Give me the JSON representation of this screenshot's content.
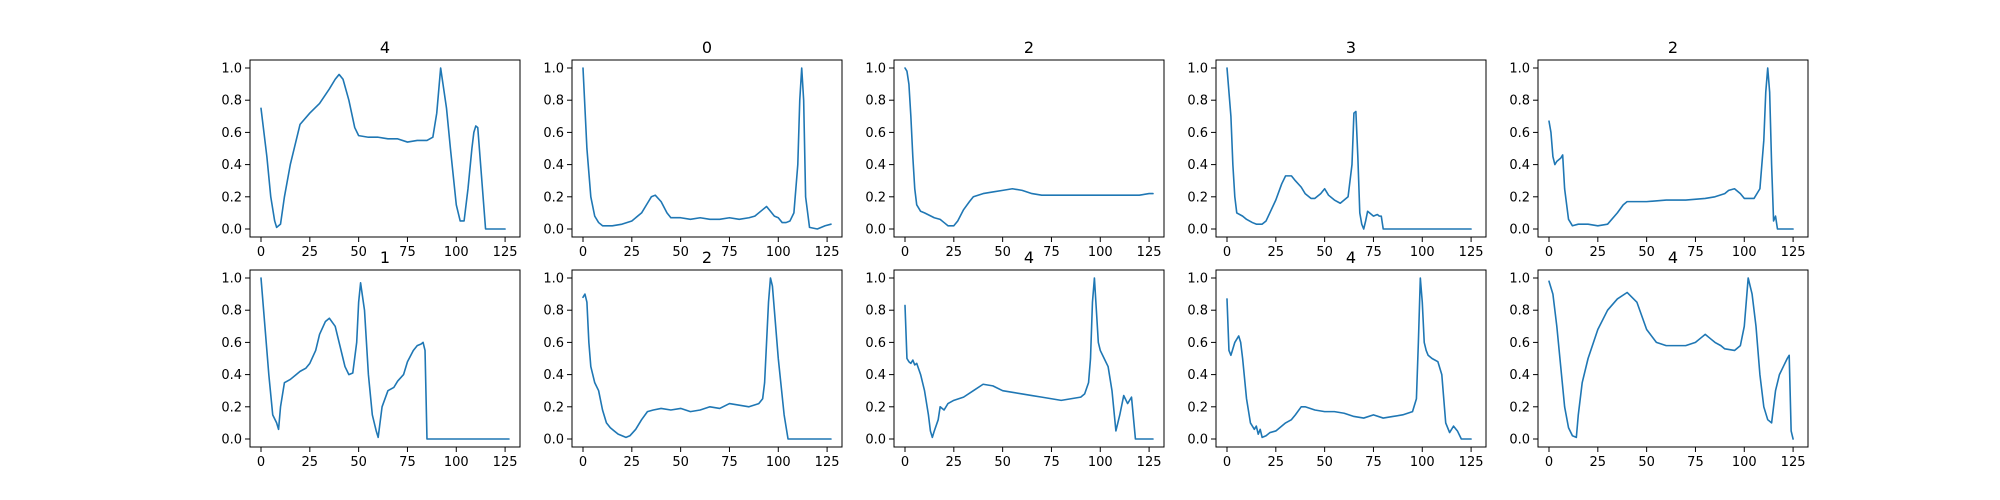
{
  "figure": {
    "line_color": "#1f77b4"
  },
  "chart_data": [
    {
      "type": "line",
      "title": "4",
      "xlim": [
        0,
        127
      ],
      "ylim": [
        0,
        1
      ],
      "xticks": [
        0,
        25,
        50,
        75,
        100,
        125
      ],
      "yticks": [
        0.0,
        0.2,
        0.4,
        0.6,
        0.8,
        1.0
      ],
      "x": [
        0,
        3,
        5,
        7,
        8,
        10,
        12,
        15,
        18,
        20,
        25,
        30,
        35,
        38,
        40,
        42,
        45,
        48,
        50,
        55,
        60,
        65,
        70,
        75,
        80,
        85,
        88,
        90,
        92,
        95,
        97,
        100,
        102,
        104,
        106,
        108,
        109,
        110,
        111,
        115,
        120,
        125
      ],
      "series": [
        {
          "values": [
            0.75,
            0.45,
            0.2,
            0.05,
            0.01,
            0.03,
            0.2,
            0.4,
            0.55,
            0.65,
            0.72,
            0.78,
            0.87,
            0.93,
            0.96,
            0.93,
            0.8,
            0.63,
            0.58,
            0.57,
            0.57,
            0.56,
            0.56,
            0.54,
            0.55,
            0.55,
            0.57,
            0.72,
            1.0,
            0.75,
            0.5,
            0.15,
            0.05,
            0.05,
            0.25,
            0.5,
            0.6,
            0.64,
            0.63,
            0.0,
            0.0,
            0.0
          ]
        }
      ]
    },
    {
      "type": "line",
      "title": "0",
      "xlim": [
        0,
        127
      ],
      "ylim": [
        0,
        1
      ],
      "xticks": [
        0,
        25,
        50,
        75,
        100,
        125
      ],
      "yticks": [
        0.0,
        0.2,
        0.4,
        0.6,
        0.8,
        1.0
      ],
      "x": [
        0,
        2,
        4,
        6,
        8,
        10,
        15,
        20,
        25,
        30,
        33,
        35,
        37,
        40,
        43,
        45,
        50,
        55,
        60,
        65,
        70,
        75,
        80,
        85,
        88,
        92,
        94,
        96,
        98,
        100,
        102,
        104,
        106,
        108,
        110,
        111,
        112,
        113,
        114,
        116,
        120,
        124,
        127
      ],
      "series": [
        {
          "values": [
            1.0,
            0.5,
            0.2,
            0.08,
            0.04,
            0.02,
            0.02,
            0.03,
            0.05,
            0.1,
            0.16,
            0.2,
            0.21,
            0.17,
            0.1,
            0.07,
            0.07,
            0.06,
            0.07,
            0.06,
            0.06,
            0.07,
            0.06,
            0.07,
            0.08,
            0.12,
            0.14,
            0.11,
            0.08,
            0.07,
            0.04,
            0.04,
            0.05,
            0.1,
            0.4,
            0.8,
            1.0,
            0.8,
            0.2,
            0.01,
            0.0,
            0.02,
            0.03
          ]
        }
      ]
    },
    {
      "type": "line",
      "title": "2",
      "xlim": [
        0,
        127
      ],
      "ylim": [
        0,
        1
      ],
      "xticks": [
        0,
        25,
        50,
        75,
        100,
        125
      ],
      "yticks": [
        0.0,
        0.2,
        0.4,
        0.6,
        0.8,
        1.0
      ],
      "x": [
        0,
        1,
        2,
        3,
        4,
        5,
        6,
        8,
        10,
        15,
        18,
        20,
        22,
        25,
        27,
        30,
        33,
        35,
        40,
        45,
        50,
        55,
        60,
        65,
        70,
        75,
        80,
        90,
        100,
        110,
        120,
        125,
        127
      ],
      "series": [
        {
          "values": [
            1.0,
            0.98,
            0.9,
            0.7,
            0.45,
            0.25,
            0.15,
            0.11,
            0.1,
            0.07,
            0.06,
            0.04,
            0.02,
            0.02,
            0.05,
            0.12,
            0.17,
            0.2,
            0.22,
            0.23,
            0.24,
            0.25,
            0.24,
            0.22,
            0.21,
            0.21,
            0.21,
            0.21,
            0.21,
            0.21,
            0.21,
            0.22,
            0.22
          ]
        }
      ]
    },
    {
      "type": "line",
      "title": "3",
      "xlim": [
        0,
        127
      ],
      "ylim": [
        0,
        1
      ],
      "xticks": [
        0,
        25,
        50,
        75,
        100,
        125
      ],
      "yticks": [
        0.0,
        0.2,
        0.4,
        0.6,
        0.8,
        1.0
      ],
      "x": [
        0,
        2,
        3,
        4,
        5,
        8,
        10,
        13,
        15,
        18,
        20,
        25,
        28,
        30,
        33,
        35,
        38,
        40,
        43,
        45,
        48,
        50,
        52,
        55,
        58,
        62,
        64,
        65,
        66,
        67,
        68,
        69,
        70,
        71,
        72,
        75,
        77,
        78,
        79,
        80,
        85,
        100,
        125
      ],
      "series": [
        {
          "values": [
            1.0,
            0.7,
            0.4,
            0.2,
            0.1,
            0.08,
            0.06,
            0.04,
            0.03,
            0.03,
            0.05,
            0.18,
            0.28,
            0.33,
            0.33,
            0.3,
            0.26,
            0.22,
            0.19,
            0.19,
            0.22,
            0.25,
            0.21,
            0.18,
            0.16,
            0.2,
            0.4,
            0.72,
            0.73,
            0.45,
            0.1,
            0.03,
            0.0,
            0.05,
            0.11,
            0.08,
            0.09,
            0.08,
            0.08,
            0.0,
            0.0,
            0.0,
            0.0
          ]
        }
      ]
    },
    {
      "type": "line",
      "title": "2",
      "xlim": [
        0,
        127
      ],
      "ylim": [
        0,
        1
      ],
      "xticks": [
        0,
        25,
        50,
        75,
        100,
        125
      ],
      "yticks": [
        0.0,
        0.2,
        0.4,
        0.6,
        0.8,
        1.0
      ],
      "x": [
        0,
        1,
        2,
        3,
        4,
        5,
        6,
        7,
        8,
        10,
        12,
        15,
        20,
        25,
        30,
        35,
        38,
        40,
        50,
        60,
        70,
        80,
        85,
        90,
        92,
        95,
        98,
        100,
        105,
        108,
        110,
        111,
        112,
        113,
        114,
        115,
        116,
        117,
        118,
        120,
        125
      ],
      "series": [
        {
          "values": [
            0.67,
            0.6,
            0.45,
            0.4,
            0.42,
            0.43,
            0.44,
            0.46,
            0.25,
            0.06,
            0.02,
            0.03,
            0.03,
            0.02,
            0.03,
            0.1,
            0.15,
            0.17,
            0.17,
            0.18,
            0.18,
            0.19,
            0.2,
            0.22,
            0.24,
            0.25,
            0.22,
            0.19,
            0.19,
            0.25,
            0.55,
            0.85,
            1.0,
            0.85,
            0.4,
            0.05,
            0.08,
            0.0,
            0.0,
            0.0,
            0.0
          ]
        }
      ]
    },
    {
      "type": "line",
      "title": "1",
      "xlim": [
        0,
        127
      ],
      "ylim": [
        0,
        1
      ],
      "xticks": [
        0,
        25,
        50,
        75,
        100,
        125
      ],
      "yticks": [
        0.0,
        0.2,
        0.4,
        0.6,
        0.8,
        1.0
      ],
      "x": [
        0,
        2,
        4,
        6,
        8,
        9,
        10,
        12,
        15,
        18,
        20,
        23,
        25,
        28,
        30,
        33,
        35,
        38,
        40,
        42,
        43,
        45,
        47,
        49,
        50,
        51,
        53,
        55,
        57,
        59,
        60,
        62,
        65,
        68,
        70,
        73,
        75,
        78,
        80,
        82,
        83,
        84,
        85,
        90,
        100,
        127
      ],
      "series": [
        {
          "values": [
            1.0,
            0.7,
            0.4,
            0.15,
            0.1,
            0.06,
            0.2,
            0.35,
            0.37,
            0.4,
            0.42,
            0.44,
            0.47,
            0.55,
            0.65,
            0.73,
            0.75,
            0.7,
            0.6,
            0.5,
            0.45,
            0.4,
            0.41,
            0.6,
            0.85,
            0.97,
            0.8,
            0.4,
            0.15,
            0.05,
            0.01,
            0.2,
            0.3,
            0.32,
            0.36,
            0.4,
            0.48,
            0.55,
            0.58,
            0.59,
            0.6,
            0.55,
            0.0,
            0.0,
            0.0,
            0.0
          ]
        }
      ]
    },
    {
      "type": "line",
      "title": "2",
      "xlim": [
        0,
        127
      ],
      "ylim": [
        0,
        1
      ],
      "xticks": [
        0,
        25,
        50,
        75,
        100,
        125
      ],
      "yticks": [
        0.0,
        0.2,
        0.4,
        0.6,
        0.8,
        1.0
      ],
      "x": [
        0,
        1,
        2,
        3,
        4,
        5,
        6,
        8,
        10,
        12,
        14,
        16,
        18,
        20,
        22,
        24,
        27,
        30,
        33,
        36,
        40,
        45,
        50,
        55,
        60,
        65,
        70,
        75,
        80,
        85,
        90,
        92,
        93,
        94,
        95,
        96,
        97,
        98,
        100,
        103,
        105,
        110,
        120,
        127
      ],
      "series": [
        {
          "values": [
            0.88,
            0.9,
            0.85,
            0.6,
            0.45,
            0.4,
            0.35,
            0.3,
            0.18,
            0.1,
            0.07,
            0.05,
            0.03,
            0.02,
            0.01,
            0.02,
            0.06,
            0.12,
            0.17,
            0.18,
            0.19,
            0.18,
            0.19,
            0.17,
            0.18,
            0.2,
            0.19,
            0.22,
            0.21,
            0.2,
            0.22,
            0.25,
            0.35,
            0.6,
            0.85,
            1.0,
            0.95,
            0.8,
            0.5,
            0.15,
            0.0,
            0.0,
            0.0,
            0.0
          ]
        }
      ]
    },
    {
      "type": "line",
      "title": "4",
      "xlim": [
        0,
        127
      ],
      "ylim": [
        0,
        1
      ],
      "xticks": [
        0,
        25,
        50,
        75,
        100,
        125
      ],
      "yticks": [
        0.0,
        0.2,
        0.4,
        0.6,
        0.8,
        1.0
      ],
      "x": [
        0,
        1,
        2,
        3,
        4,
        5,
        6,
        8,
        10,
        12,
        13,
        14,
        15,
        17,
        18,
        20,
        22,
        25,
        30,
        35,
        40,
        45,
        50,
        55,
        60,
        65,
        70,
        75,
        80,
        85,
        90,
        92,
        94,
        95,
        96,
        97,
        98,
        99,
        100,
        102,
        104,
        106,
        108,
        110,
        112,
        114,
        116,
        118,
        120,
        127
      ],
      "series": [
        {
          "values": [
            0.83,
            0.5,
            0.48,
            0.47,
            0.49,
            0.46,
            0.47,
            0.4,
            0.3,
            0.15,
            0.05,
            0.01,
            0.05,
            0.12,
            0.2,
            0.18,
            0.22,
            0.24,
            0.26,
            0.3,
            0.34,
            0.33,
            0.3,
            0.29,
            0.28,
            0.27,
            0.26,
            0.25,
            0.24,
            0.25,
            0.26,
            0.28,
            0.35,
            0.5,
            0.85,
            1.0,
            0.8,
            0.6,
            0.55,
            0.5,
            0.45,
            0.3,
            0.05,
            0.15,
            0.27,
            0.22,
            0.26,
            0.0,
            0.0,
            0.0
          ]
        }
      ]
    },
    {
      "type": "line",
      "title": "4",
      "xlim": [
        0,
        127
      ],
      "ylim": [
        0,
        1
      ],
      "xticks": [
        0,
        25,
        50,
        75,
        100,
        125
      ],
      "yticks": [
        0.0,
        0.2,
        0.4,
        0.6,
        0.8,
        1.0
      ],
      "x": [
        0,
        1,
        2,
        3,
        4,
        5,
        6,
        7,
        8,
        10,
        12,
        14,
        15,
        16,
        17,
        18,
        20,
        22,
        25,
        28,
        30,
        33,
        35,
        38,
        40,
        45,
        50,
        55,
        60,
        65,
        70,
        75,
        80,
        85,
        90,
        95,
        97,
        98,
        99,
        100,
        101,
        102,
        103,
        105,
        108,
        110,
        112,
        114,
        116,
        118,
        120,
        125
      ],
      "series": [
        {
          "values": [
            0.87,
            0.55,
            0.52,
            0.56,
            0.6,
            0.62,
            0.64,
            0.6,
            0.5,
            0.25,
            0.1,
            0.06,
            0.08,
            0.03,
            0.06,
            0.01,
            0.02,
            0.04,
            0.05,
            0.08,
            0.1,
            0.12,
            0.15,
            0.2,
            0.2,
            0.18,
            0.17,
            0.17,
            0.16,
            0.14,
            0.13,
            0.15,
            0.13,
            0.14,
            0.15,
            0.17,
            0.25,
            0.6,
            1.0,
            0.85,
            0.6,
            0.55,
            0.52,
            0.5,
            0.48,
            0.4,
            0.1,
            0.04,
            0.08,
            0.05,
            0.0,
            0.0
          ]
        }
      ]
    },
    {
      "type": "line",
      "title": "4",
      "xlim": [
        0,
        127
      ],
      "ylim": [
        0,
        1
      ],
      "xticks": [
        0,
        25,
        50,
        75,
        100,
        125
      ],
      "yticks": [
        0.0,
        0.2,
        0.4,
        0.6,
        0.8,
        1.0
      ],
      "x": [
        0,
        2,
        4,
        6,
        8,
        10,
        12,
        14,
        15,
        17,
        20,
        25,
        30,
        35,
        40,
        45,
        50,
        55,
        60,
        65,
        70,
        75,
        78,
        80,
        83,
        85,
        88,
        90,
        95,
        98,
        100,
        102,
        104,
        106,
        108,
        110,
        112,
        114,
        116,
        118,
        120,
        122,
        123,
        124,
        125
      ],
      "series": [
        {
          "values": [
            0.98,
            0.9,
            0.7,
            0.45,
            0.2,
            0.07,
            0.02,
            0.01,
            0.15,
            0.35,
            0.5,
            0.68,
            0.8,
            0.87,
            0.91,
            0.85,
            0.68,
            0.6,
            0.58,
            0.58,
            0.58,
            0.6,
            0.63,
            0.65,
            0.62,
            0.6,
            0.58,
            0.56,
            0.55,
            0.58,
            0.7,
            1.0,
            0.9,
            0.7,
            0.4,
            0.2,
            0.12,
            0.1,
            0.3,
            0.4,
            0.45,
            0.5,
            0.52,
            0.05,
            0.0
          ]
        }
      ]
    }
  ]
}
